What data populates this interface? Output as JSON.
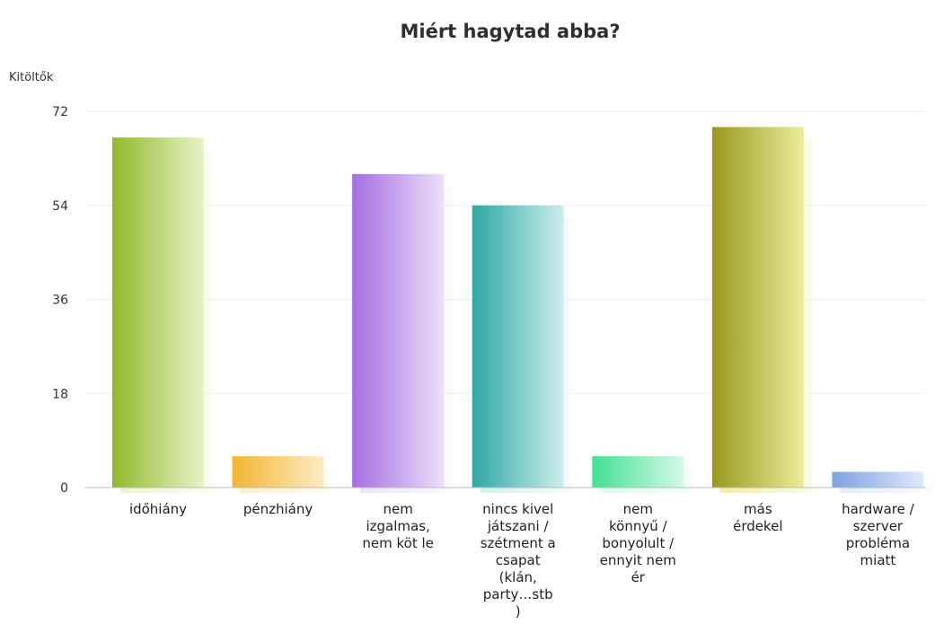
{
  "chart_data": {
    "type": "bar",
    "title": "Miért hagytad abba?",
    "ylabel": "Kitöltők",
    "xlabel": "",
    "ylim": [
      0,
      72
    ],
    "yticks": [
      0,
      18,
      36,
      54,
      72
    ],
    "grid": true,
    "categories": [
      [
        "időhiány"
      ],
      [
        "pénzhiány"
      ],
      [
        "nem",
        "izgalmas,",
        "nem köt le"
      ],
      [
        "nincs kivel",
        "játszani /",
        "szétment a",
        "csapat",
        "(klán,",
        "party…stb",
        ")"
      ],
      [
        "nem",
        "könnyű /",
        "bonyolult /",
        "ennyit nem",
        "ér"
      ],
      [
        "más",
        "érdekel"
      ],
      [
        "hardware /",
        "szerver",
        "probléma",
        "miatt"
      ]
    ],
    "values": [
      67,
      6,
      60,
      54,
      6,
      69,
      3
    ],
    "colors": [
      [
        "#8fba2a",
        "#e9f2c9"
      ],
      [
        "#f2b533",
        "#fcedc4"
      ],
      [
        "#a46ee0",
        "#ecdffa"
      ],
      [
        "#2ea7a3",
        "#cdeeed"
      ],
      [
        "#44df93",
        "#d4fae6"
      ],
      [
        "#98981f",
        "#ecec9a"
      ],
      [
        "#7ca2e2",
        "#e0eafa"
      ]
    ]
  }
}
